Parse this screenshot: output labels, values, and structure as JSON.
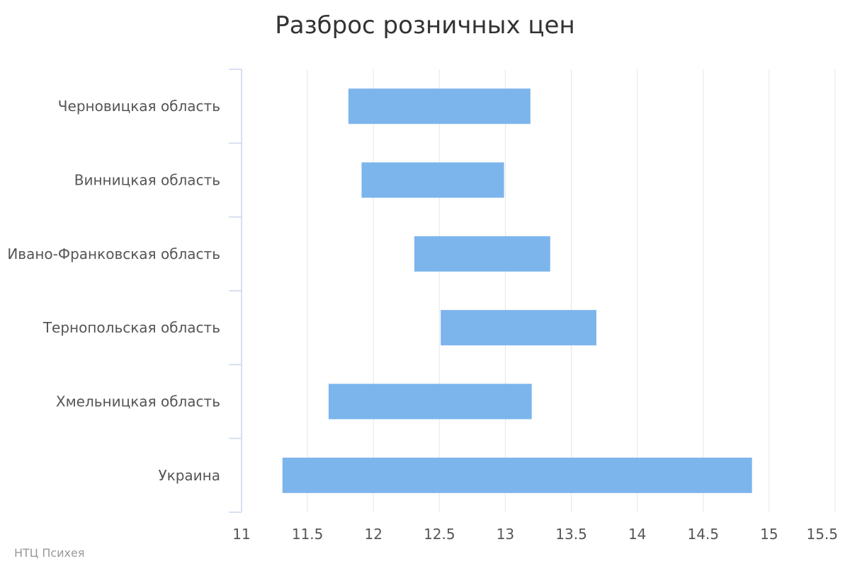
{
  "chart_data": {
    "type": "columnrange",
    "orientation": "horizontal",
    "title": "Разброс розничных цен",
    "categories": [
      "Черновицкая область",
      "Винницкая область",
      "Ивано-Франковская область",
      "Тернопольская область",
      "Хмельницкая область",
      "Украина"
    ],
    "ranges": [
      [
        11.81,
        13.19
      ],
      [
        11.91,
        12.99
      ],
      [
        12.31,
        13.34
      ],
      [
        12.51,
        13.69
      ],
      [
        11.66,
        13.2
      ],
      [
        11.31,
        14.87
      ]
    ],
    "xlim": [
      11,
      15.5
    ],
    "xticks": [
      "11",
      "11.5",
      "12",
      "12.5",
      "13",
      "13.5",
      "14",
      "14.5",
      "15",
      "15.5"
    ],
    "xtick_values": [
      11,
      11.5,
      12,
      12.5,
      13,
      13.5,
      14,
      14.5,
      15,
      15.5
    ],
    "grid": true,
    "colors": {
      "bar": "#7cb5ec",
      "grid": "#e6e6e6",
      "axis": "#ccd6eb"
    }
  },
  "credit": "НТЦ Психея"
}
